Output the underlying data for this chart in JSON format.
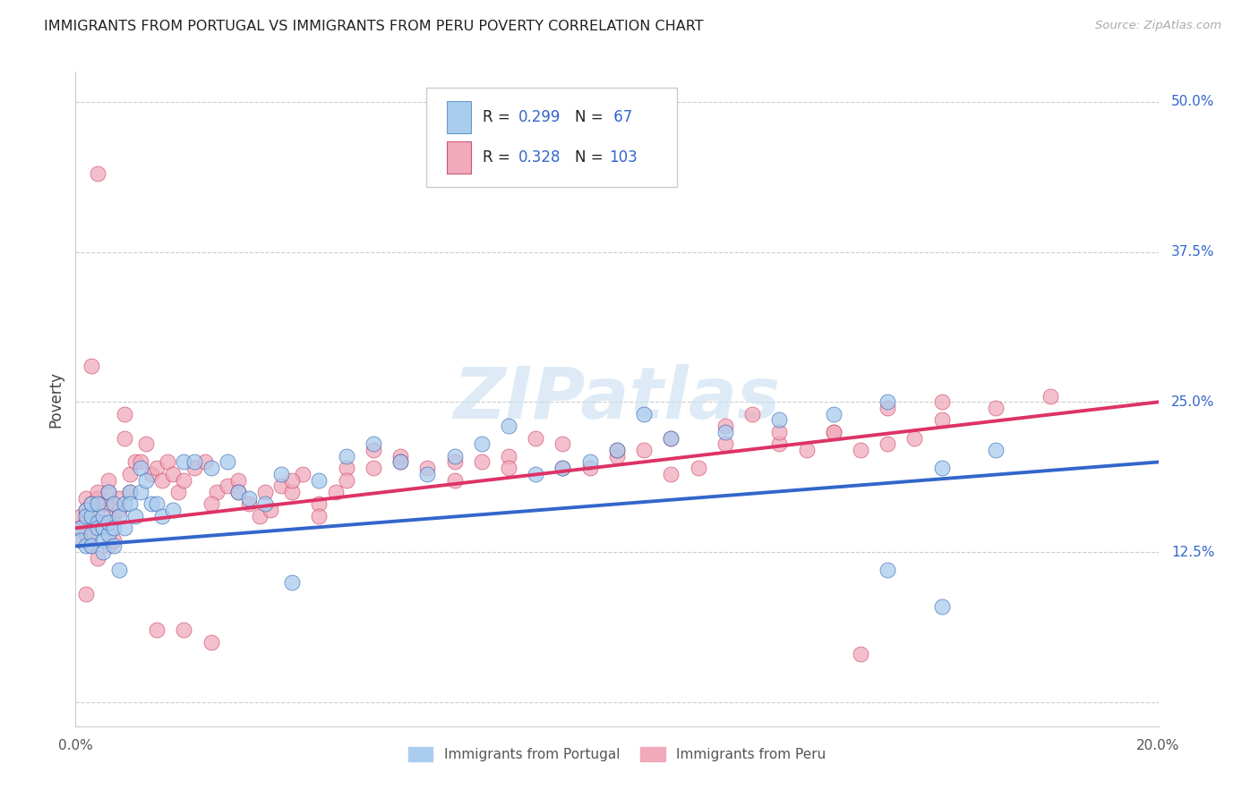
{
  "title": "IMMIGRANTS FROM PORTUGAL VS IMMIGRANTS FROM PERU POVERTY CORRELATION CHART",
  "source": "Source: ZipAtlas.com",
  "ylabel": "Poverty",
  "yticks": [
    0.0,
    0.125,
    0.25,
    0.375,
    0.5
  ],
  "ytick_labels_right": [
    "",
    "12.5%",
    "25.0%",
    "37.5%",
    "50.0%"
  ],
  "xlim": [
    0.0,
    0.2
  ],
  "ylim": [
    -0.02,
    0.525
  ],
  "watermark": "ZIPatlas",
  "series1_label": "Immigrants from Portugal",
  "series2_label": "Immigrants from Peru",
  "color_portugal": "#aaccee",
  "color_peru": "#f0aabb",
  "line_color_portugal": "#3366cc",
  "line_color_peru": "#dd3366",
  "r1": "0.299",
  "n1": "67",
  "r2": "0.328",
  "n2": "103",
  "portugal_x": [
    0.001,
    0.001,
    0.002,
    0.002,
    0.002,
    0.003,
    0.003,
    0.003,
    0.003,
    0.004,
    0.004,
    0.004,
    0.005,
    0.005,
    0.005,
    0.005,
    0.006,
    0.006,
    0.006,
    0.007,
    0.007,
    0.007,
    0.008,
    0.008,
    0.009,
    0.009,
    0.01,
    0.01,
    0.011,
    0.012,
    0.012,
    0.013,
    0.014,
    0.015,
    0.016,
    0.018,
    0.02,
    0.022,
    0.025,
    0.028,
    0.03,
    0.032,
    0.035,
    0.038,
    0.04,
    0.045,
    0.05,
    0.055,
    0.06,
    0.065,
    0.07,
    0.075,
    0.08,
    0.085,
    0.09,
    0.095,
    0.1,
    0.105,
    0.11,
    0.12,
    0.13,
    0.14,
    0.15,
    0.16,
    0.17,
    0.15,
    0.16
  ],
  "portugal_y": [
    0.145,
    0.135,
    0.16,
    0.13,
    0.155,
    0.155,
    0.14,
    0.13,
    0.165,
    0.165,
    0.15,
    0.145,
    0.145,
    0.135,
    0.125,
    0.155,
    0.175,
    0.14,
    0.15,
    0.165,
    0.145,
    0.13,
    0.155,
    0.11,
    0.145,
    0.165,
    0.175,
    0.165,
    0.155,
    0.195,
    0.175,
    0.185,
    0.165,
    0.165,
    0.155,
    0.16,
    0.2,
    0.2,
    0.195,
    0.2,
    0.175,
    0.17,
    0.165,
    0.19,
    0.1,
    0.185,
    0.205,
    0.215,
    0.2,
    0.19,
    0.205,
    0.215,
    0.23,
    0.19,
    0.195,
    0.2,
    0.21,
    0.24,
    0.22,
    0.225,
    0.235,
    0.24,
    0.25,
    0.195,
    0.21,
    0.11,
    0.08
  ],
  "peru_x": [
    0.001,
    0.001,
    0.001,
    0.002,
    0.002,
    0.002,
    0.002,
    0.003,
    0.003,
    0.003,
    0.003,
    0.004,
    0.004,
    0.004,
    0.005,
    0.005,
    0.005,
    0.006,
    0.006,
    0.006,
    0.007,
    0.007,
    0.007,
    0.008,
    0.008,
    0.009,
    0.009,
    0.01,
    0.01,
    0.011,
    0.012,
    0.013,
    0.014,
    0.015,
    0.016,
    0.017,
    0.018,
    0.019,
    0.02,
    0.022,
    0.024,
    0.026,
    0.028,
    0.03,
    0.032,
    0.034,
    0.036,
    0.038,
    0.04,
    0.042,
    0.045,
    0.048,
    0.05,
    0.055,
    0.06,
    0.065,
    0.07,
    0.075,
    0.08,
    0.085,
    0.09,
    0.095,
    0.1,
    0.105,
    0.11,
    0.115,
    0.12,
    0.125,
    0.13,
    0.135,
    0.14,
    0.145,
    0.15,
    0.155,
    0.16,
    0.025,
    0.03,
    0.035,
    0.04,
    0.045,
    0.05,
    0.055,
    0.06,
    0.07,
    0.08,
    0.09,
    0.1,
    0.11,
    0.12,
    0.13,
    0.14,
    0.15,
    0.16,
    0.002,
    0.003,
    0.004,
    0.015,
    0.02,
    0.145,
    0.025,
    0.17,
    0.18,
    0.004
  ],
  "peru_y": [
    0.155,
    0.145,
    0.135,
    0.17,
    0.16,
    0.15,
    0.14,
    0.165,
    0.155,
    0.14,
    0.13,
    0.17,
    0.16,
    0.175,
    0.165,
    0.15,
    0.145,
    0.175,
    0.185,
    0.13,
    0.165,
    0.155,
    0.135,
    0.17,
    0.16,
    0.24,
    0.22,
    0.175,
    0.19,
    0.2,
    0.2,
    0.215,
    0.19,
    0.195,
    0.185,
    0.2,
    0.19,
    0.175,
    0.185,
    0.195,
    0.2,
    0.175,
    0.18,
    0.185,
    0.165,
    0.155,
    0.16,
    0.18,
    0.175,
    0.19,
    0.165,
    0.175,
    0.195,
    0.21,
    0.205,
    0.195,
    0.185,
    0.2,
    0.205,
    0.22,
    0.215,
    0.195,
    0.205,
    0.21,
    0.22,
    0.195,
    0.23,
    0.24,
    0.215,
    0.21,
    0.225,
    0.21,
    0.245,
    0.22,
    0.25,
    0.165,
    0.175,
    0.175,
    0.185,
    0.155,
    0.185,
    0.195,
    0.2,
    0.2,
    0.195,
    0.195,
    0.21,
    0.19,
    0.215,
    0.225,
    0.225,
    0.215,
    0.235,
    0.09,
    0.28,
    0.44,
    0.06,
    0.06,
    0.04,
    0.05,
    0.245,
    0.255,
    0.12
  ]
}
